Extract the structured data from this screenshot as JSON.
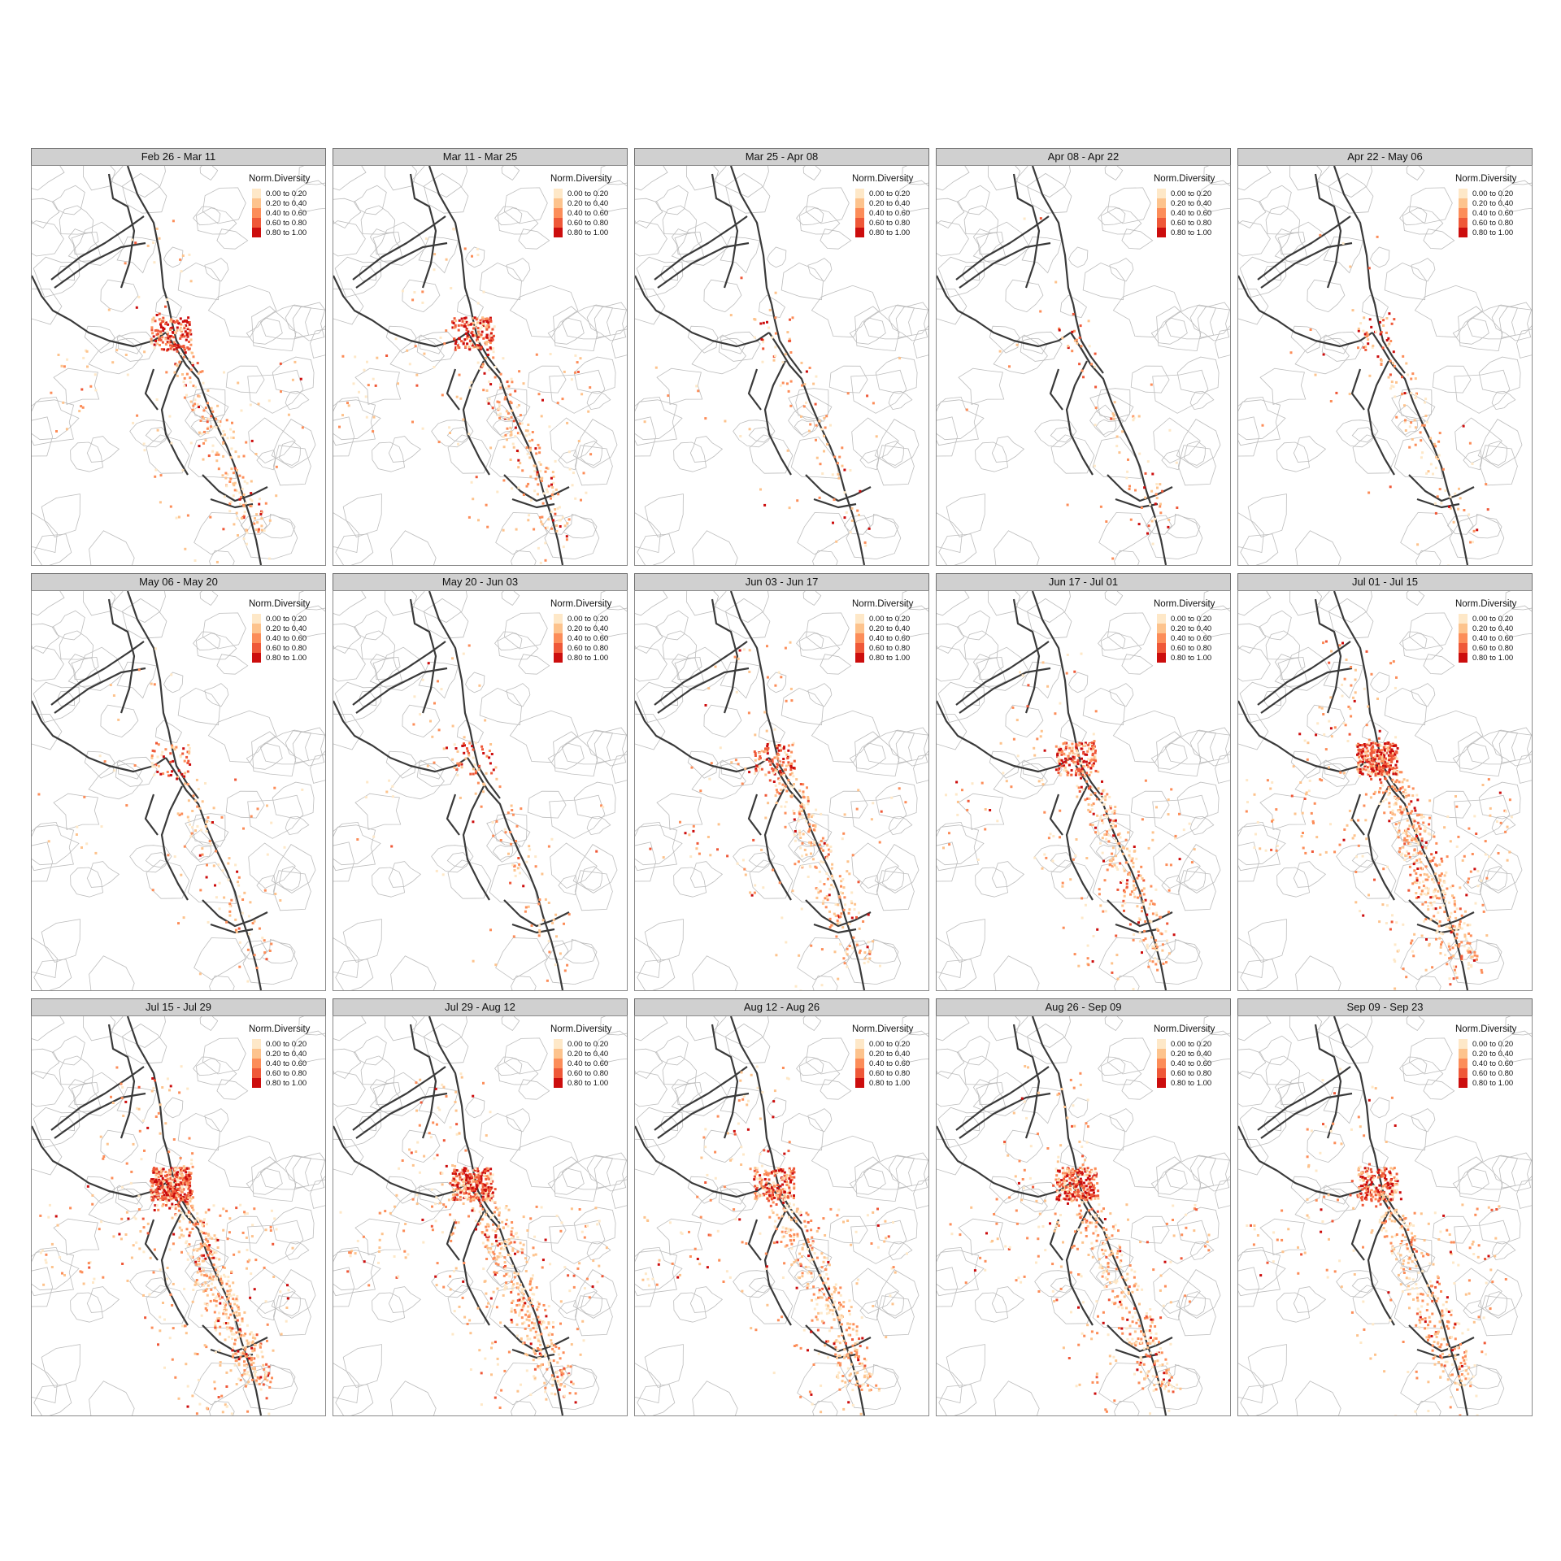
{
  "panels": [
    {
      "title": "Feb 26 - Mar 11",
      "points": 420,
      "hotspot": 1.0,
      "spread": 0.9
    },
    {
      "title": "Mar 11 - Mar 25",
      "points": 440,
      "hotspot": 1.0,
      "spread": 0.9
    },
    {
      "title": "Mar 25 - Apr 08",
      "points": 110,
      "hotspot": 0.5,
      "spread": 1.0
    },
    {
      "title": "Apr 08 - Apr 22",
      "points": 90,
      "hotspot": 0.5,
      "spread": 1.0
    },
    {
      "title": "Apr 22 - May 06",
      "points": 150,
      "hotspot": 0.6,
      "spread": 1.0
    },
    {
      "title": "May 06 - May 20",
      "points": 190,
      "hotspot": 0.7,
      "spread": 1.0
    },
    {
      "title": "May 20 - Jun 03",
      "points": 160,
      "hotspot": 0.8,
      "spread": 1.0
    },
    {
      "title": "Jun 03 - Jun 17",
      "points": 420,
      "hotspot": 0.8,
      "spread": 1.0
    },
    {
      "title": "Jun 17 - Jul 01",
      "points": 520,
      "hotspot": 0.9,
      "spread": 1.0
    },
    {
      "title": "Jul 01 - Jul 15",
      "points": 900,
      "hotspot": 1.0,
      "spread": 1.1
    },
    {
      "title": "Jul 15 - Jul 29",
      "points": 1000,
      "hotspot": 1.0,
      "spread": 1.1
    },
    {
      "title": "Jul 29 - Aug 12",
      "points": 850,
      "hotspot": 1.0,
      "spread": 1.1
    },
    {
      "title": "Aug 12 - Aug 26",
      "points": 650,
      "hotspot": 0.8,
      "spread": 1.1
    },
    {
      "title": "Aug 26 - Sep 09",
      "points": 700,
      "hotspot": 0.9,
      "spread": 1.1
    },
    {
      "title": "Sep 09 - Sep 23",
      "points": 620,
      "hotspot": 0.8,
      "spread": 1.1
    }
  ],
  "legend": {
    "title": "Norm.Diversity",
    "classes": [
      {
        "label": "0.00 to 0.20",
        "color": "#fee8c8"
      },
      {
        "label": "0.20 to 0.40",
        "color": "#fdc38d"
      },
      {
        "label": "0.40 to 0.60",
        "color": "#fc8d59"
      },
      {
        "label": "0.60 to 0.80",
        "color": "#ef5838"
      },
      {
        "label": "0.80 to 1.00",
        "color": "#cc0d0d"
      }
    ]
  },
  "colors": {
    "boundary": "#bdbdbd",
    "road": "#3a3a3a",
    "strip_bg": "#d0d0d0"
  }
}
